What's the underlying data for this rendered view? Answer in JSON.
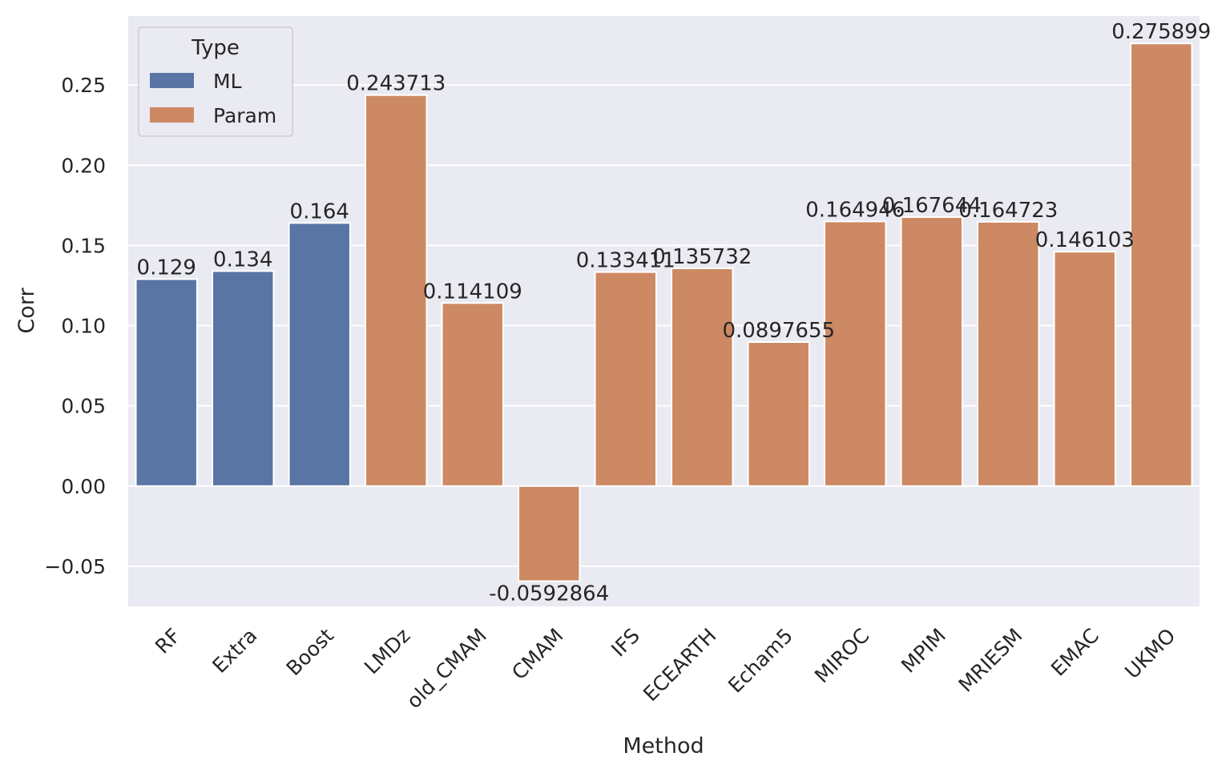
{
  "chart_data": {
    "type": "bar",
    "xlabel": "Method",
    "ylabel": "Corr",
    "ylim": [
      -0.075,
      0.293
    ],
    "yticks": [
      -0.05,
      0.0,
      0.05,
      0.1,
      0.15,
      0.2,
      0.25
    ],
    "ytick_labels": [
      "−0.05",
      "0.00",
      "0.05",
      "0.10",
      "0.15",
      "0.20",
      "0.25"
    ],
    "grid": true,
    "legend": {
      "title": "Type",
      "placement": "top-left",
      "entries": [
        {
          "name": "ML",
          "color": "#5875a4"
        },
        {
          "name": "Param",
          "color": "#cc8963"
        }
      ]
    },
    "categories": [
      "RF",
      "Extra",
      "Boost",
      "LMDz",
      "old_CMAM",
      "CMAM",
      "IFS",
      "ECEARTH",
      "Echam5",
      "MIROC",
      "MPIM",
      "MRIESM",
      "EMAC",
      "UKMO"
    ],
    "values": [
      0.129,
      0.134,
      0.164,
      0.243713,
      0.114109,
      -0.0592864,
      0.133411,
      0.135732,
      0.0897655,
      0.164946,
      0.167644,
      0.164723,
      0.146103,
      0.275899
    ],
    "types": [
      "ML",
      "ML",
      "ML",
      "Param",
      "Param",
      "Param",
      "Param",
      "Param",
      "Param",
      "Param",
      "Param",
      "Param",
      "Param",
      "Param"
    ],
    "data_labels": [
      "0.129",
      "0.134",
      "0.164",
      "0.243713",
      "0.114109",
      "-0.0592864",
      "0.133411",
      "0.135732",
      "0.0897655",
      "0.164946",
      "0.167644",
      "0.164723",
      "0.146103",
      "0.275899"
    ]
  },
  "colors": {
    "plot_background": "#eaeaf2",
    "grid": "#ffffff",
    "ML": "#5875a4",
    "Param": "#cc8963"
  }
}
